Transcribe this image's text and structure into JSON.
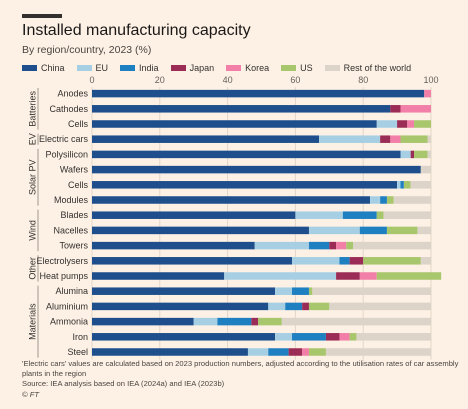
{
  "header": {
    "title": "Installed manufacturing capacity",
    "subtitle": "By region/country, 2023 (%)"
  },
  "footer": {
    "note_line1": "'Electric cars' values are calculated based on 2023 production numbers, adjusted according to the utilisation rates of car assembly",
    "note_line2": "plants in the region",
    "source": "Source: IEA analysis based on IEA (2024a) and IEA (2023b)",
    "credit": "© FT"
  },
  "chart_data": {
    "type": "bar",
    "orientation": "horizontal",
    "stacked": true,
    "title": "Installed manufacturing capacity",
    "subtitle": "By region/country, 2023 (%)",
    "xlim": [
      0,
      100
    ],
    "xticks": [
      0,
      20,
      40,
      60,
      80,
      100
    ],
    "grid": true,
    "legend_placement": "top",
    "groups": [
      {
        "name": "Batteries",
        "categories": [
          "Anodes",
          "Cathodes",
          "Cells"
        ]
      },
      {
        "name": "EV",
        "categories": [
          "Electric cars"
        ]
      },
      {
        "name": "Solar PV",
        "categories": [
          "Polysilicon",
          "Wafers",
          "Cells",
          "Modules"
        ]
      },
      {
        "name": "Wind",
        "categories": [
          "Blades",
          "Nacelles",
          "Towers"
        ]
      },
      {
        "name": "Other",
        "categories": [
          "Electrolysers",
          "Heat pumps"
        ]
      },
      {
        "name": "Materials",
        "categories": [
          "Alumina",
          "Aluminium",
          "Ammonia",
          "Iron",
          "Steel"
        ]
      }
    ],
    "categories": [
      "Anodes",
      "Cathodes",
      "Cells",
      "Electric cars",
      "Polysilicon",
      "Wafers",
      "Cells",
      "Modules",
      "Blades",
      "Nacelles",
      "Towers",
      "Electrolysers",
      "Heat pumps",
      "Alumina",
      "Aluminium",
      "Ammonia",
      "Iron",
      "Steel"
    ],
    "series": [
      {
        "name": "China",
        "color": "#1f4e8c",
        "values": [
          98,
          88,
          84,
          67,
          91,
          97,
          90,
          82,
          60,
          64,
          48,
          59,
          39,
          54,
          52,
          30,
          54,
          46
        ]
      },
      {
        "name": "EU",
        "color": "#a6cfe3",
        "values": [
          0,
          0,
          6,
          18,
          3,
          0,
          1,
          3,
          14,
          15,
          16,
          14,
          33,
          5,
          5,
          7,
          5,
          6
        ]
      },
      {
        "name": "India",
        "color": "#1e7fc1",
        "values": [
          0,
          0,
          0,
          0,
          0,
          0,
          1,
          2,
          10,
          8,
          6,
          3,
          0,
          5,
          5,
          10,
          10,
          6
        ]
      },
      {
        "name": "Japan",
        "color": "#9b2c55",
        "values": [
          0,
          3,
          3,
          3,
          1,
          0,
          0,
          0,
          0,
          0,
          2,
          4,
          7,
          0,
          2,
          2,
          4,
          4
        ]
      },
      {
        "name": "Korea",
        "color": "#f27fa8",
        "values": [
          2,
          9,
          2,
          3,
          0,
          0,
          0,
          0,
          0,
          0,
          3,
          0,
          5,
          0,
          0,
          0,
          3,
          2
        ]
      },
      {
        "name": "US",
        "color": "#a8c66c",
        "values": [
          0,
          0,
          5,
          8,
          4,
          0,
          2,
          2,
          2,
          9,
          2,
          17,
          19,
          1,
          6,
          7,
          2,
          5
        ]
      },
      {
        "name": "Rest of the world",
        "color": "#dcd3c9",
        "values": [
          0,
          0,
          0,
          1,
          1,
          3,
          6,
          11,
          14,
          4,
          23,
          3,
          0,
          35,
          30,
          44,
          22,
          31
        ]
      }
    ]
  }
}
